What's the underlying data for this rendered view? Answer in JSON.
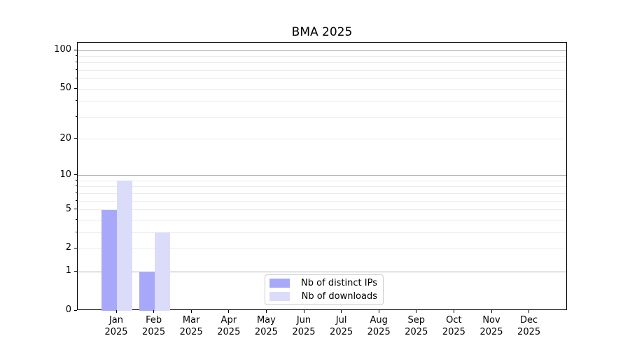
{
  "chart_data": {
    "type": "bar",
    "title": "BMA 2025",
    "categories": [
      "Jan",
      "Feb",
      "Mar",
      "Apr",
      "May",
      "Jun",
      "Jul",
      "Aug",
      "Sep",
      "Oct",
      "Nov",
      "Dec"
    ],
    "category_year": "2025",
    "series": [
      {
        "name": "Nb of distinct IPs",
        "color": "#a8a8fa",
        "values": [
          5,
          1,
          0,
          0,
          0,
          0,
          0,
          0,
          0,
          0,
          0,
          0
        ]
      },
      {
        "name": "Nb of downloads",
        "color": "#dbdbfa",
        "values": [
          9,
          3,
          0,
          0,
          0,
          0,
          0,
          0,
          0,
          0,
          0,
          0
        ]
      }
    ],
    "yscale": "log1p",
    "ylim": [
      0,
      115
    ],
    "yticks": [
      0,
      1,
      2,
      5,
      10,
      20,
      50,
      100
    ],
    "grid_major": [
      1,
      10,
      100
    ],
    "grid_minor": [
      2,
      3,
      4,
      5,
      6,
      7,
      8,
      9,
      20,
      30,
      40,
      50,
      60,
      70,
      80,
      90
    ],
    "legend_position": "bottom-center",
    "legend_entries": [
      "Nb of distinct IPs",
      "Nb of downloads"
    ]
  },
  "colors": {
    "spine": "#000000",
    "grid_major": "#b0b0b0",
    "grid_minor": "#ebebeb",
    "background": "#ffffff",
    "text": "#000000",
    "legend_border": "#cccccc"
  }
}
